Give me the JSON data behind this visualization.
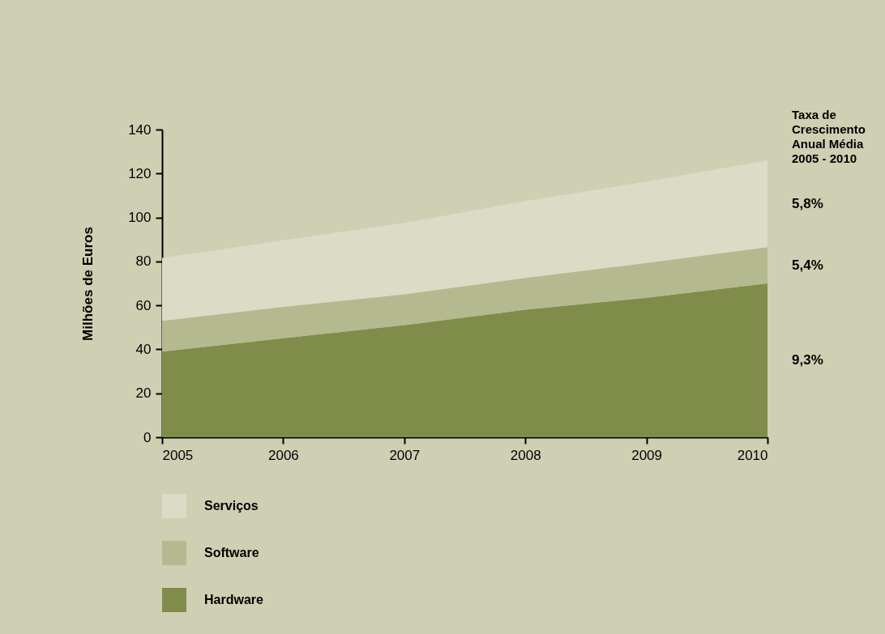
{
  "chart_data": {
    "type": "area",
    "stacked": true,
    "ylabel": "Milhões de Euros",
    "x": [
      2005,
      2006,
      2007,
      2008,
      2009,
      2010
    ],
    "xlim": [
      2005,
      2010
    ],
    "xticks": [
      2005,
      2006,
      2007,
      2008,
      2009,
      2010
    ],
    "ylim": [
      0,
      140
    ],
    "yticks": [
      0,
      20,
      40,
      60,
      80,
      100,
      120,
      140
    ],
    "grid": false,
    "legend": "bottom left",
    "series": [
      {
        "name": "Hardware",
        "color": "#808c4a",
        "values": [
          39,
          45,
          51,
          58,
          63.5,
          70
        ]
      },
      {
        "name": "Software",
        "color": "#b5b98f",
        "values": [
          14,
          14.3,
          14,
          14.5,
          15.8,
          16.5
        ]
      },
      {
        "name": "Serviços",
        "color": "#dbdbc6",
        "values": [
          28.6,
          30.3,
          32.5,
          35,
          37,
          39.5
        ]
      }
    ],
    "annotations": [
      "Taxa de\nCrescimento\nAnual Média\n2005 - 2010",
      "5,8%",
      "5,4%",
      "9,3%"
    ]
  }
}
